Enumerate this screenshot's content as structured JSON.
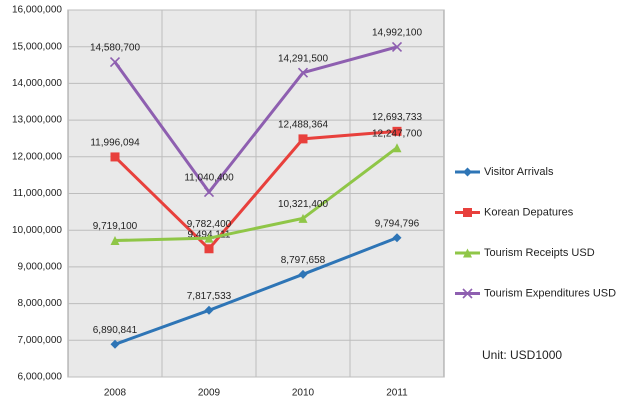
{
  "chart_data": {
    "type": "line",
    "categories": [
      "2008",
      "2009",
      "2010",
      "2011"
    ],
    "series": [
      {
        "name": "Visitor Arrivals",
        "color": "#2e75b6",
        "marker": "diamond",
        "values": [
          6890841,
          7817533,
          8797658,
          9794796
        ],
        "value_labels": [
          "6,890,841",
          "7,817,533",
          "8,797,658",
          "9,794,796"
        ]
      },
      {
        "name": "Korean Depatures",
        "color": "#e8403c",
        "marker": "square",
        "values": [
          11996094,
          9494111,
          12488364,
          12693733
        ],
        "value_labels": [
          "11,996,094",
          "9,494,111",
          "12,488,364",
          "12,693,733"
        ]
      },
      {
        "name": "Tourism Receipts USD",
        "color": "#8fc647",
        "marker": "triangle",
        "values": [
          9719100,
          9782400,
          10321400,
          12247700
        ],
        "value_labels": [
          "9,719,100",
          "9,782,400",
          "10,321,400",
          "12,247,700"
        ]
      },
      {
        "name": "Tourism Expenditures USD",
        "color": "#8e5fb0",
        "marker": "x",
        "values": [
          14580700,
          11040400,
          14291500,
          14992100
        ],
        "value_labels": [
          "14,580,700",
          "11,040,400",
          "14,291,500",
          "14,992,100"
        ]
      }
    ],
    "ylim": [
      6000000,
      16000000
    ],
    "yticks": [
      {
        "value": 6000000,
        "label": "6,000,000"
      },
      {
        "value": 7000000,
        "label": "7,000,000"
      },
      {
        "value": 8000000,
        "label": "8,000,000"
      },
      {
        "value": 9000000,
        "label": "9,000,000"
      },
      {
        "value": 10000000,
        "label": "10,000,000"
      },
      {
        "value": 11000000,
        "label": "11,000,000"
      },
      {
        "value": 12000000,
        "label": "12,000,000"
      },
      {
        "value": 13000000,
        "label": "13,000,000"
      },
      {
        "value": 14000000,
        "label": "14,000,000"
      },
      {
        "value": 15000000,
        "label": "15,000,000"
      },
      {
        "value": 16000000,
        "label": "16,000,000"
      }
    ],
    "grid": true,
    "legend": "right",
    "annotation": "Unit: USD1000"
  }
}
